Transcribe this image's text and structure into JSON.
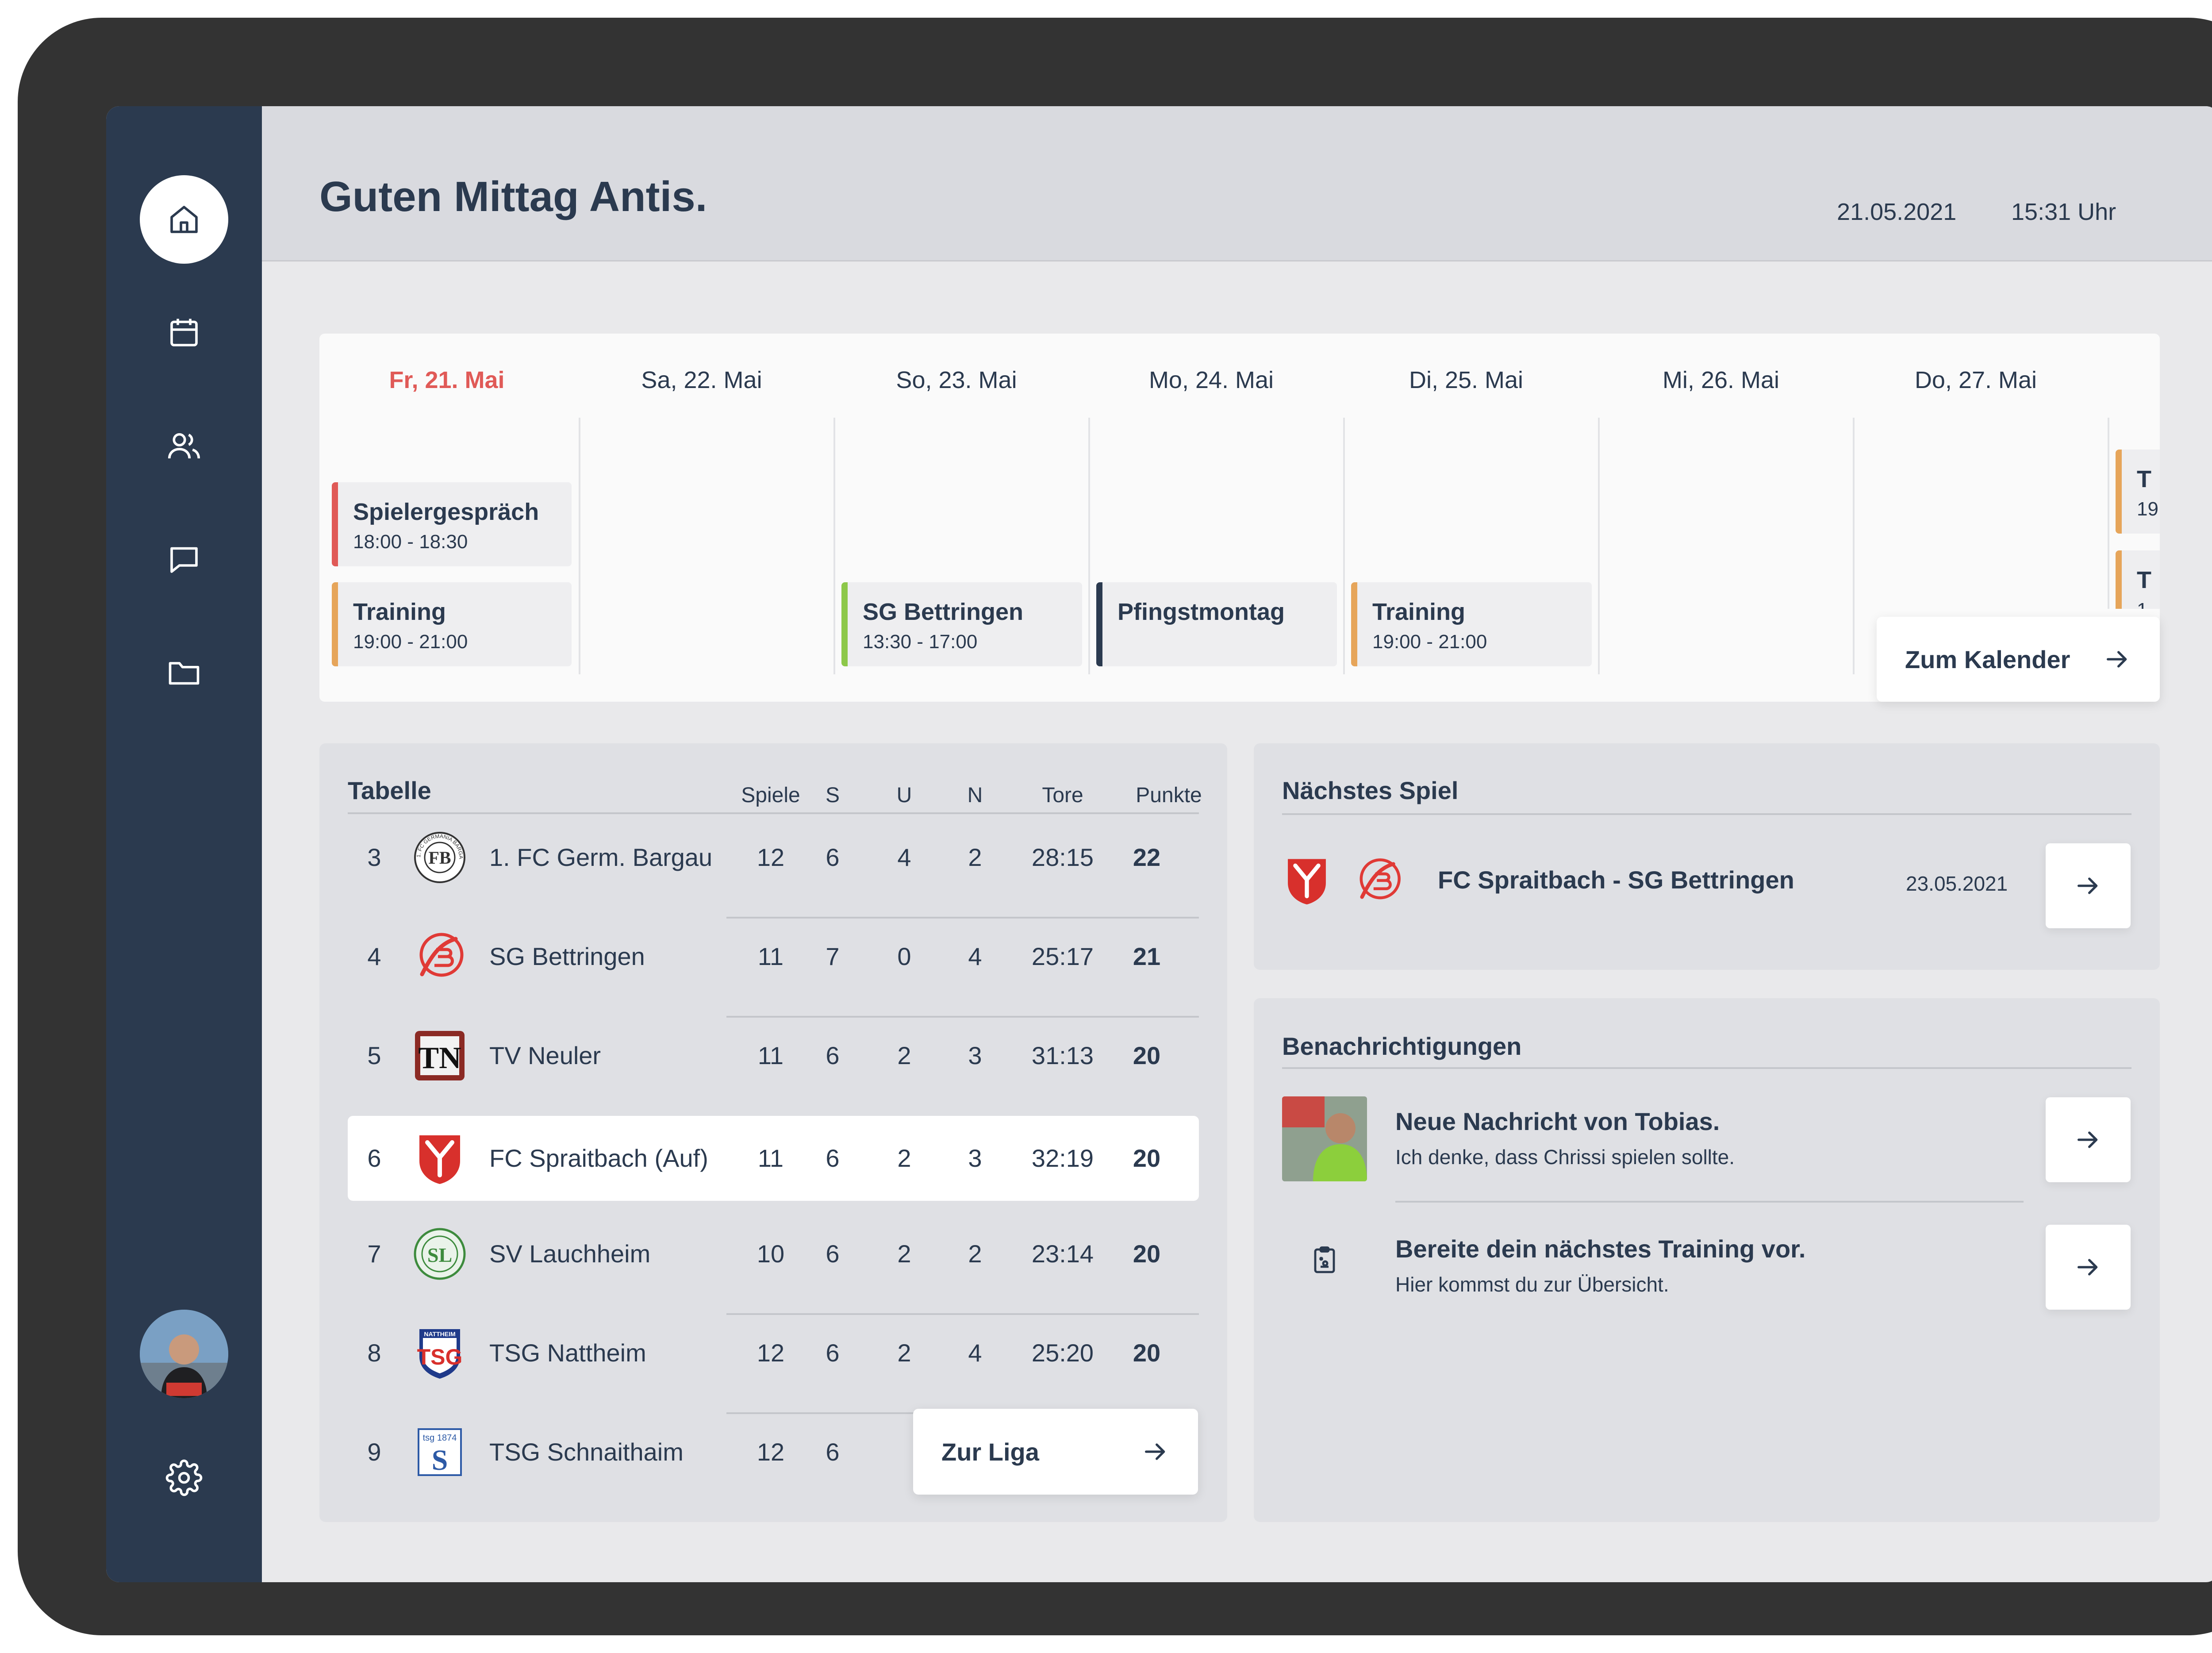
{
  "header": {
    "greeting": "Guten Mittag Antis.",
    "date": "21.05.2021",
    "time": "15:31 Uhr"
  },
  "sidebar": {
    "items": [
      {
        "icon": "home-icon"
      },
      {
        "icon": "calendar-icon"
      },
      {
        "icon": "users-icon"
      },
      {
        "icon": "chat-icon"
      },
      {
        "icon": "folder-icon"
      }
    ],
    "settings_icon": "gear-icon"
  },
  "calendar": {
    "days": [
      "Fr, 21. Mai",
      "Sa, 22. Mai",
      "So, 23. Mai",
      "Mo, 24. Mai",
      "Di, 25. Mai",
      "Mi, 26. Mai",
      "Do, 27. Mai"
    ],
    "events": [
      {
        "title": "Spielergespräch",
        "time": "18:00 - 18:30",
        "color": "#e05a57"
      },
      {
        "title": "Training",
        "time": "19:00 - 21:00",
        "color": "#e6a55a"
      },
      {
        "title": "SG Bettringen",
        "time": "13:30 - 17:00",
        "color": "#8dc84a"
      },
      {
        "title": "Pfingstmontag",
        "time": "",
        "color": "#2b3a4f"
      },
      {
        "title": "Training",
        "time": "19:00 - 21:00",
        "color": "#e6a55a"
      },
      {
        "title": "T",
        "time": "19",
        "color": "#e6a55a"
      },
      {
        "title": "T",
        "time": "1",
        "color": "#e6a55a"
      }
    ],
    "button_label": "Zum Kalender"
  },
  "table": {
    "title": "Tabelle",
    "columns": [
      "Spiele",
      "S",
      "U",
      "N",
      "Tore",
      "Punkte"
    ],
    "rows": [
      {
        "rank": "3",
        "team": "1. FC Germ. Bargau",
        "spiele": "12",
        "s": "6",
        "u": "4",
        "n": "2",
        "tore": "28:15",
        "punkte": "22"
      },
      {
        "rank": "4",
        "team": "SG Bettringen",
        "spiele": "11",
        "s": "7",
        "u": "0",
        "n": "4",
        "tore": "25:17",
        "punkte": "21"
      },
      {
        "rank": "5",
        "team": "TV Neuler",
        "spiele": "11",
        "s": "6",
        "u": "2",
        "n": "3",
        "tore": "31:13",
        "punkte": "20"
      },
      {
        "rank": "6",
        "team": "FC Spraitbach (Auf)",
        "spiele": "11",
        "s": "6",
        "u": "2",
        "n": "3",
        "tore": "32:19",
        "punkte": "20"
      },
      {
        "rank": "7",
        "team": "SV Lauchheim",
        "spiele": "10",
        "s": "6",
        "u": "2",
        "n": "2",
        "tore": "23:14",
        "punkte": "20"
      },
      {
        "rank": "8",
        "team": "TSG Nattheim",
        "spiele": "12",
        "s": "6",
        "u": "2",
        "n": "4",
        "tore": "25:20",
        "punkte": "20"
      },
      {
        "rank": "9",
        "team": "TSG Schnaithaim",
        "spiele": "12",
        "s": "6",
        "u": "",
        "n": "",
        "tore": "",
        "punkte": ""
      }
    ],
    "button_label": "Zur Liga"
  },
  "next_game": {
    "title": "Nächstes Spiel",
    "match": "FC Spraitbach - SG Bettringen",
    "date": "23.05.2021"
  },
  "notifications": {
    "title": "Benachrichtigungen",
    "items": [
      {
        "title": "Neue Nachricht von Tobias.",
        "text": "Ich denke, dass Chrissi spielen sollte."
      },
      {
        "title": "Bereite dein nächstes Training vor.",
        "text": "Hier kommst du zur Übersicht."
      }
    ]
  },
  "logo_text": {
    "bargau": "1. FC GERMANIA BARGAU E.V.",
    "neuler": "TN",
    "nattheim": "NATTHEIM TSG",
    "schnaitheim": "tsg 1874 S"
  },
  "colors": {
    "accent": "#e05a57",
    "navy": "#2b3a4f",
    "orange": "#e6a55a",
    "green": "#8dc84a"
  }
}
